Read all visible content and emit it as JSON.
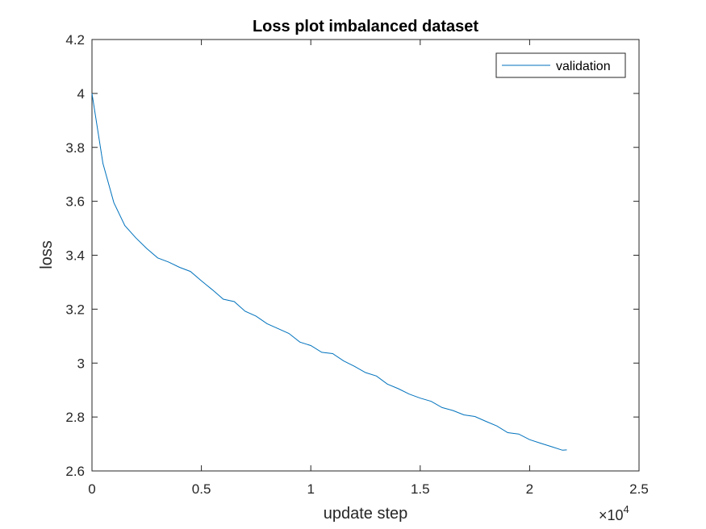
{
  "chart_data": {
    "type": "line",
    "title": "Loss plot imbalanced dataset",
    "xlabel": "update step",
    "ylabel": "loss",
    "xlim": [
      0,
      25000
    ],
    "ylim": [
      2.6,
      4.2
    ],
    "x_tick_values": [
      0,
      5000,
      10000,
      15000,
      20000,
      25000
    ],
    "x_tick_labels": [
      "0",
      "0.5",
      "1",
      "1.5",
      "2",
      "2.5"
    ],
    "x_exponent_base": "10",
    "x_exponent_power": "4",
    "x_exponent_prefix": "×",
    "y_tick_values": [
      2.6,
      2.8,
      3.0,
      3.2,
      3.4,
      3.6,
      3.8,
      4.0,
      4.2
    ],
    "y_tick_labels": [
      "2.6",
      "2.8",
      "3",
      "3.2",
      "3.4",
      "3.6",
      "3.8",
      "4",
      "4.2"
    ],
    "legend_position": "top-right",
    "series": [
      {
        "name": "validation",
        "color": "#0072BD",
        "x": [
          0,
          500,
          1000,
          1500,
          2000,
          2500,
          3000,
          3500,
          4000,
          4500,
          5000,
          5500,
          6000,
          6500,
          7000,
          7500,
          8000,
          8500,
          9000,
          9500,
          10000,
          10500,
          11000,
          11500,
          12000,
          12500,
          13000,
          13500,
          14000,
          14500,
          15000,
          15500,
          16000,
          16500,
          17000,
          17500,
          18000,
          18500,
          19000,
          19500,
          20000,
          20500,
          21000,
          21500,
          21700
        ],
        "y": [
          4.0,
          3.74,
          3.595,
          3.51,
          3.465,
          3.425,
          3.39,
          3.375,
          3.355,
          3.34,
          3.305,
          3.272,
          3.237,
          3.228,
          3.192,
          3.174,
          3.146,
          3.128,
          3.11,
          3.078,
          3.065,
          3.04,
          3.035,
          3.008,
          2.988,
          2.965,
          2.952,
          2.922,
          2.905,
          2.885,
          2.87,
          2.858,
          2.835,
          2.824,
          2.808,
          2.802,
          2.784,
          2.767,
          2.742,
          2.737,
          2.716,
          2.703,
          2.69,
          2.677,
          2.678
        ]
      }
    ]
  }
}
